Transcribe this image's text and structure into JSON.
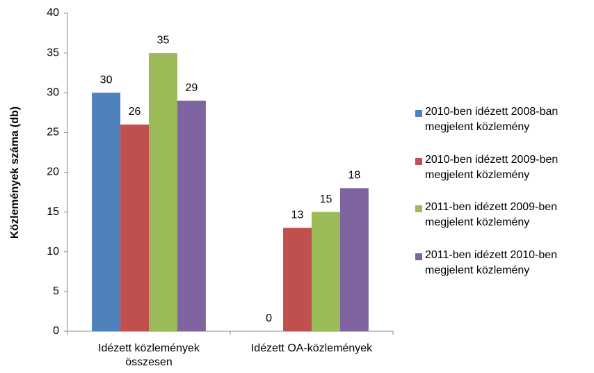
{
  "chart_data": {
    "type": "bar",
    "y_label": "Közlemények száma (db)",
    "categories": [
      "Idézett közlemények összesen",
      "Idézett OA-közlemények"
    ],
    "series": [
      {
        "name": "2010-ben idézett 2008-ban megjelent közlemény",
        "color": "#4f81bd",
        "values": [
          30,
          0
        ]
      },
      {
        "name": "2010-ben idézett 2009-ben megjelent közlemény",
        "color": "#c0504d",
        "values": [
          26,
          13
        ]
      },
      {
        "name": "2011-ben idézett 2009-ben megjelent közlemény",
        "color": "#9bbb59",
        "values": [
          35,
          15
        ]
      },
      {
        "name": "2011-ben idézett 2010-ben megjelent közlemény",
        "color": "#8064a2",
        "values": [
          29,
          18
        ]
      }
    ],
    "ylim": [
      0,
      40
    ],
    "yticks": [
      0,
      5,
      10,
      15,
      20,
      25,
      30,
      35,
      40
    ],
    "legend": "right"
  }
}
